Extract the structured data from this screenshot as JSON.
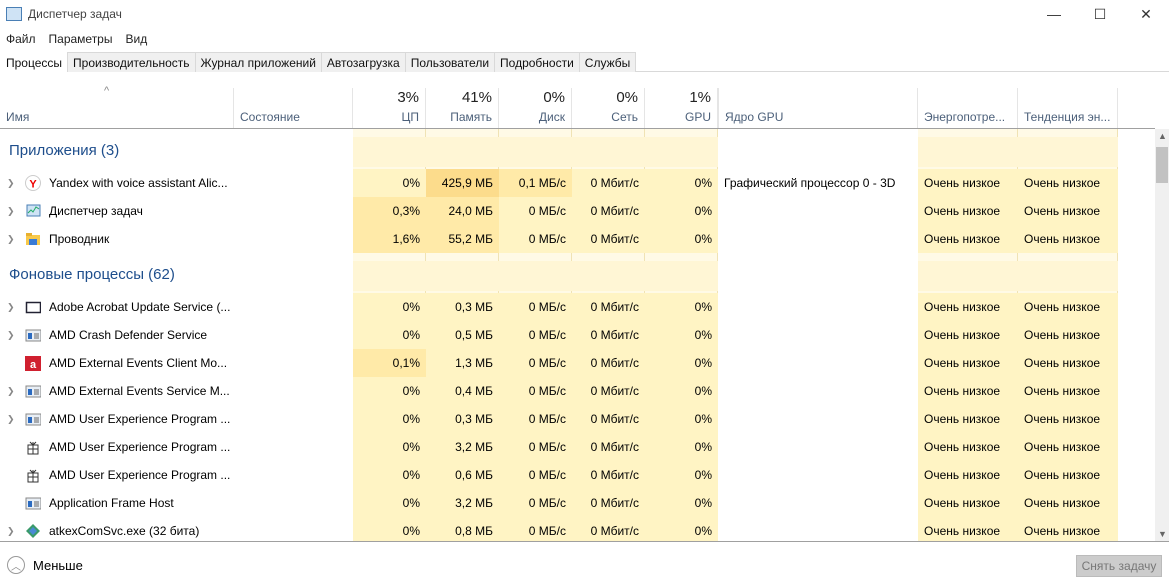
{
  "window": {
    "title": "Диспетчер задач",
    "minimize": "—",
    "maximize": "☐",
    "close": "✕"
  },
  "menu": [
    "Файл",
    "Параметры",
    "Вид"
  ],
  "tabs": [
    "Процессы",
    "Производительность",
    "Журнал приложений",
    "Автозагрузка",
    "Пользователи",
    "Подробности",
    "Службы"
  ],
  "columns": [
    {
      "label": "Имя",
      "pct": ""
    },
    {
      "label": "Состояние",
      "pct": ""
    },
    {
      "label": "ЦП",
      "pct": "3%"
    },
    {
      "label": "Память",
      "pct": "41%"
    },
    {
      "label": "Диск",
      "pct": "0%"
    },
    {
      "label": "Сеть",
      "pct": "0%"
    },
    {
      "label": "GPU",
      "pct": "1%"
    },
    {
      "label": "Ядро GPU",
      "pct": ""
    },
    {
      "label": "Энергопотре...",
      "pct": ""
    },
    {
      "label": "Тенденция эн...",
      "pct": ""
    }
  ],
  "colors": {
    "cell": "#fff4c4",
    "cell_mid": "#ffeaa8",
    "cell_hi": "#fcdc8c",
    "group_text": "#1e4e8c"
  },
  "rows": [
    {
      "type": "group",
      "name": "Приложения (3)"
    },
    {
      "type": "proc",
      "expand": true,
      "icon": "yandex-icon",
      "name": "Yandex with voice assistant Alic...",
      "cpu": "0%",
      "mem": "425,9 МБ",
      "disk": "0,1 МБ/с",
      "net": "0 Мбит/с",
      "gpu": "0%",
      "gpueng": "Графический процессор 0 - 3D",
      "pow": "Очень низкое",
      "powt": "Очень низкое"
    },
    {
      "type": "proc",
      "expand": true,
      "icon": "task-manager-icon",
      "name": "Диспетчер задач",
      "cpu": "0,3%",
      "mem": "24,0 МБ",
      "disk": "0 МБ/с",
      "net": "0 Мбит/с",
      "gpu": "0%",
      "gpueng": "",
      "pow": "Очень низкое",
      "powt": "Очень низкое"
    },
    {
      "type": "proc",
      "expand": true,
      "icon": "explorer-icon",
      "name": "Проводник",
      "cpu": "1,6%",
      "mem": "55,2 МБ",
      "disk": "0 МБ/с",
      "net": "0 Мбит/с",
      "gpu": "0%",
      "gpueng": "",
      "pow": "Очень низкое",
      "powt": "Очень низкое"
    },
    {
      "type": "group",
      "name": "Фоновые процессы (62)"
    },
    {
      "type": "proc",
      "expand": true,
      "icon": "window-icon",
      "name": "Adobe Acrobat Update Service (...",
      "cpu": "0%",
      "mem": "0,3 МБ",
      "disk": "0 МБ/с",
      "net": "0 Мбит/с",
      "gpu": "0%",
      "gpueng": "",
      "pow": "Очень низкое",
      "powt": "Очень низкое"
    },
    {
      "type": "proc",
      "expand": true,
      "icon": "service-icon",
      "name": "AMD Crash Defender Service",
      "cpu": "0%",
      "mem": "0,5 МБ",
      "disk": "0 МБ/с",
      "net": "0 Мбит/с",
      "gpu": "0%",
      "gpueng": "",
      "pow": "Очень низкое",
      "powt": "Очень низкое"
    },
    {
      "type": "proc",
      "expand": false,
      "icon": "amd-icon",
      "name": "AMD External Events Client Mo...",
      "cpu": "0,1%",
      "mem": "1,3 МБ",
      "disk": "0 МБ/с",
      "net": "0 Мбит/с",
      "gpu": "0%",
      "gpueng": "",
      "pow": "Очень низкое",
      "powt": "Очень низкое"
    },
    {
      "type": "proc",
      "expand": true,
      "icon": "service-icon",
      "name": "AMD External Events Service M...",
      "cpu": "0%",
      "mem": "0,4 МБ",
      "disk": "0 МБ/с",
      "net": "0 Мбит/с",
      "gpu": "0%",
      "gpueng": "",
      "pow": "Очень низкое",
      "powt": "Очень низкое"
    },
    {
      "type": "proc",
      "expand": true,
      "icon": "service-icon",
      "name": "AMD User Experience Program ...",
      "cpu": "0%",
      "mem": "0,3 МБ",
      "disk": "0 МБ/с",
      "net": "0 Мбит/с",
      "gpu": "0%",
      "gpueng": "",
      "pow": "Очень низкое",
      "powt": "Очень низкое"
    },
    {
      "type": "proc",
      "expand": false,
      "icon": "gift-icon",
      "name": "AMD User Experience Program ...",
      "cpu": "0%",
      "mem": "3,2 МБ",
      "disk": "0 МБ/с",
      "net": "0 Мбит/с",
      "gpu": "0%",
      "gpueng": "",
      "pow": "Очень низкое",
      "powt": "Очень низкое"
    },
    {
      "type": "proc",
      "expand": false,
      "icon": "gift-icon",
      "name": "AMD User Experience Program ...",
      "cpu": "0%",
      "mem": "0,6 МБ",
      "disk": "0 МБ/с",
      "net": "0 Мбит/с",
      "gpu": "0%",
      "gpueng": "",
      "pow": "Очень низкое",
      "powt": "Очень низкое"
    },
    {
      "type": "proc",
      "expand": false,
      "icon": "service-icon",
      "name": "Application Frame Host",
      "cpu": "0%",
      "mem": "3,2 МБ",
      "disk": "0 МБ/с",
      "net": "0 Мбит/с",
      "gpu": "0%",
      "gpueng": "",
      "pow": "Очень низкое",
      "powt": "Очень низкое"
    },
    {
      "type": "proc",
      "expand": true,
      "icon": "atkex-icon",
      "name": "atkexComSvc.exe (32 бита)",
      "cpu": "0%",
      "mem": "0,8 МБ",
      "disk": "0 МБ/с",
      "net": "0 Мбит/с",
      "gpu": "0%",
      "gpueng": "",
      "pow": "Очень низкое",
      "powt": "Очень низкое"
    }
  ],
  "footer": {
    "less": "Меньше",
    "end_task": "Снять задачу"
  }
}
